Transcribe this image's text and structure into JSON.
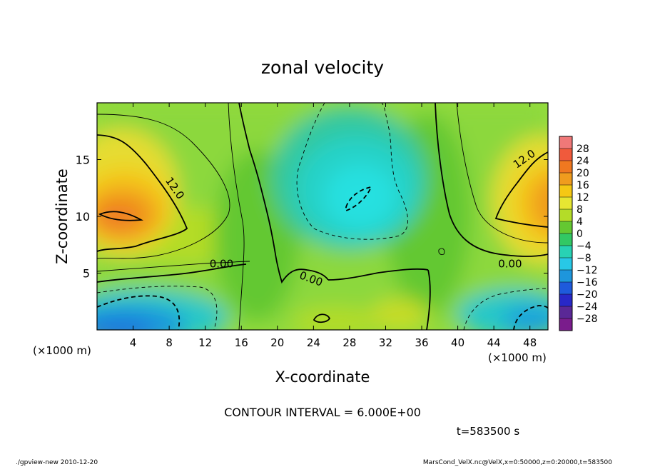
{
  "chart_data": {
    "type": "heatmap",
    "title": "zonal velocity",
    "xlabel": "X-coordinate",
    "ylabel": "Z-coordinate",
    "x_unit": "(×1000 m)",
    "y_unit": "(×1000 m)",
    "x_ticks": [
      4,
      8,
      12,
      16,
      20,
      24,
      28,
      32,
      36,
      40,
      44,
      48
    ],
    "y_ticks": [
      5,
      10,
      15
    ],
    "xlim": [
      0,
      50
    ],
    "ylim": [
      0,
      20
    ],
    "colorbar": {
      "labels": [
        28,
        24,
        20,
        16,
        12,
        8,
        4,
        0,
        -4,
        -8,
        -12,
        -16,
        -20,
        -24,
        -28
      ],
      "colors": [
        "#f07878",
        "#f05a3c",
        "#f07820",
        "#f09c1e",
        "#f5c814",
        "#e6e632",
        "#b4dc28",
        "#64c832",
        "#32c864",
        "#28d2b4",
        "#28c8e6",
        "#1e96dc",
        "#1e5adc",
        "#2828c8",
        "#5a2896",
        "#7a1c8c"
      ]
    },
    "contour_labels": [
      {
        "text": "12.0",
        "x": 8.3,
        "y": 12.3
      },
      {
        "text": "12.0",
        "x": 47.6,
        "y": 14.8
      },
      {
        "text": "0.00",
        "x": 13.8,
        "y": 5.5
      },
      {
        "text": "0.00",
        "x": 23.6,
        "y": 4.2
      },
      {
        "text": "0.00",
        "x": 45.8,
        "y": 5.5
      }
    ],
    "contour_interval": "CONTOUR INTERVAL = 6.000E+00",
    "time": "t=583500 s"
  },
  "footer": {
    "left": "./gpview-new  2010-12-20",
    "right": "MarsCond_VelX.nc@VelX,x=0:50000,z=0:20000,t=583500"
  }
}
